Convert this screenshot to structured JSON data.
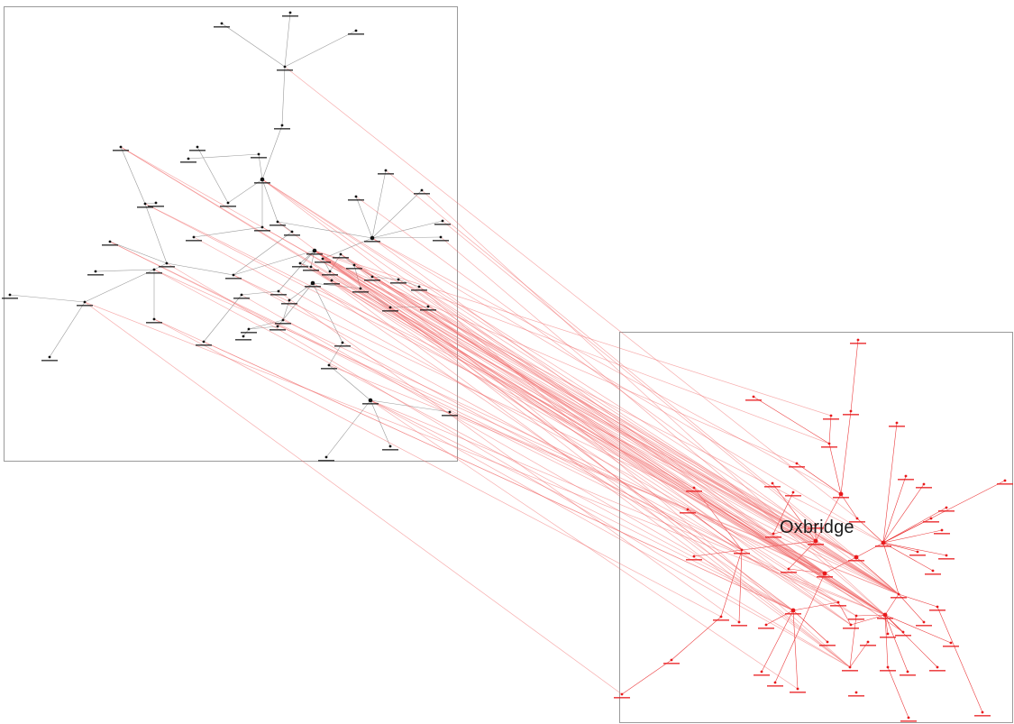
{
  "diagram": {
    "focus_label": "Oxbridge",
    "colors": {
      "left_node": "#111111",
      "left_edge": "#9a9a9a",
      "right_node": "#e8191b",
      "right_edge": "#e8191b",
      "cross_edge": "#f06a6a",
      "panel_border": "#9a9a9a"
    }
  }
}
